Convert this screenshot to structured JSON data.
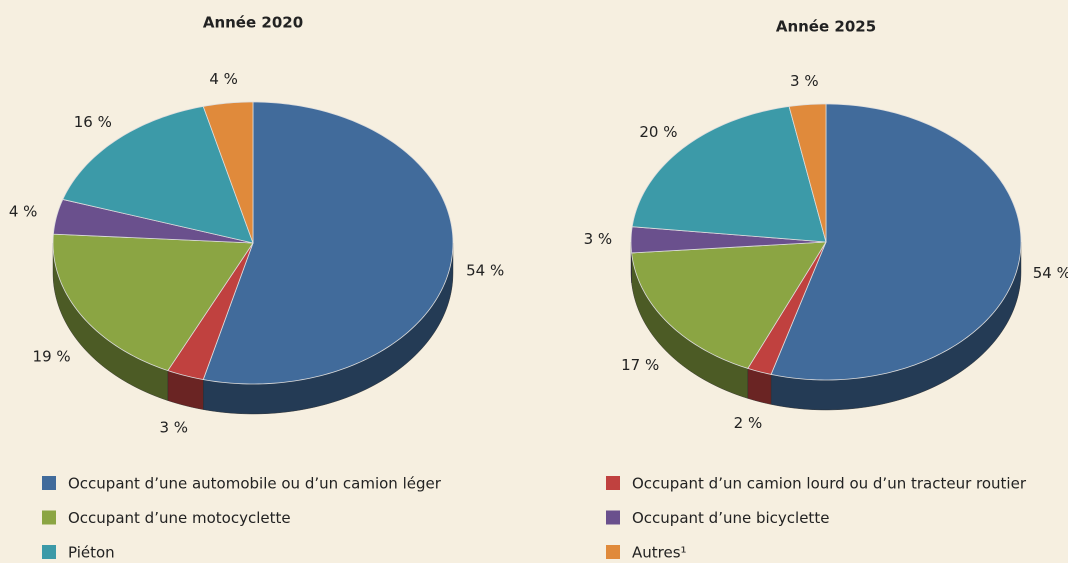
{
  "chart_data": {
    "type": "pie",
    "categories": [
      "Occupant d’une automobile ou d’un camion léger",
      "Occupant d’un camion lourd ou d’un tracteur routier",
      "Occupant d’une motocyclette",
      "Occupant d’une bicyclette",
      "Piéton",
      "Autres¹"
    ],
    "colors": [
      "#416b9b",
      "#c0413f",
      "#8ba543",
      "#6a508d",
      "#3c9aa8",
      "#e08a3b"
    ],
    "series": [
      {
        "name": "Année 2020",
        "values": [
          54,
          3,
          19,
          4,
          16,
          4
        ],
        "value_labels": [
          "54 %",
          "3 %",
          "19 %",
          "4 %",
          "16 %",
          "4 %"
        ]
      },
      {
        "name": "Année 2025",
        "values": [
          54,
          2,
          17,
          3,
          20,
          3
        ],
        "value_labels": [
          "54 %",
          "2 %",
          "17 %",
          "3 %",
          "20 %",
          "3 %"
        ]
      }
    ]
  }
}
